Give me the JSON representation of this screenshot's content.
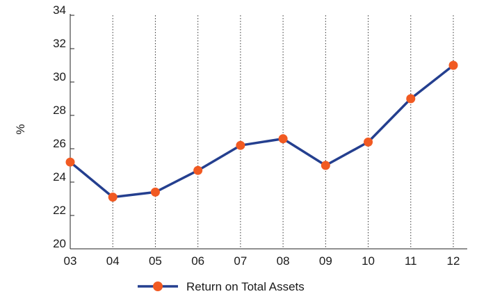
{
  "chart_data": {
    "type": "line",
    "title": "",
    "xlabel": "",
    "ylabel": "%",
    "categories": [
      "03",
      "04",
      "05",
      "06",
      "07",
      "08",
      "09",
      "10",
      "11",
      "12"
    ],
    "series": [
      {
        "name": "Return on Total Assets",
        "values": [
          25.2,
          23.1,
          23.4,
          24.7,
          26.2,
          26.6,
          25.0,
          26.4,
          29.0,
          31.0
        ]
      }
    ],
    "ylim": [
      20,
      34
    ],
    "yticks": [
      20,
      22,
      24,
      26,
      28,
      30,
      32,
      34
    ],
    "grid": "vertical dotted",
    "legend_position": "bottom-center",
    "colors": {
      "line": "#243f8f",
      "marker": "#f15a22",
      "grid": "#333333",
      "axis": "#222222"
    }
  }
}
